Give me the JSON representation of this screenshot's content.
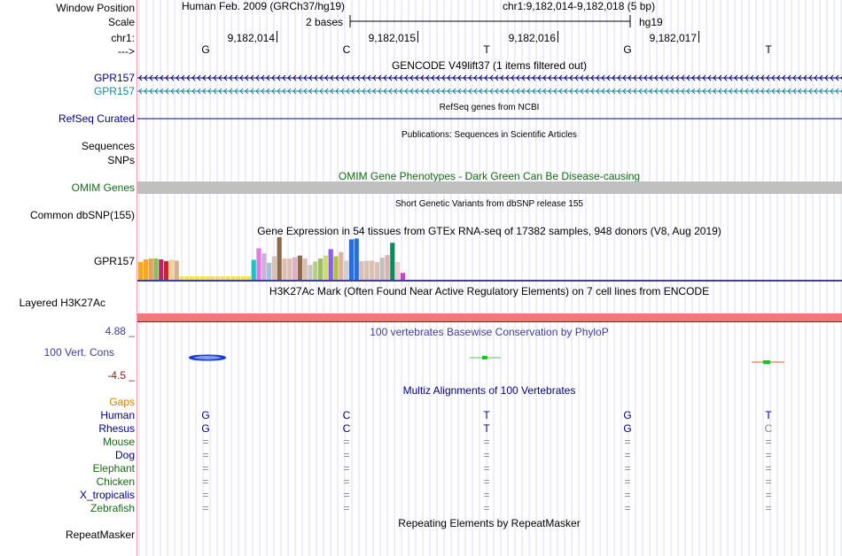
{
  "header": {
    "window_position_label": "Window Position",
    "scale_label": "Scale",
    "chr_label": "chr1:",
    "arrow_label": "--->",
    "assembly": "Human Feb. 2009 (GRCh37/hg19)",
    "position": "chr1:9,182,014-9,182,018 (5 bp)",
    "scale_text": "2 bases",
    "db": "hg19",
    "coords": [
      "9,182,014",
      "9,182,015",
      "9,182,016",
      "9,182,017"
    ],
    "bases": [
      "G",
      "C",
      "T",
      "G",
      "T"
    ]
  },
  "tracks": {
    "gencode": {
      "title": "GENCODE V49lift37 (1 items filtered out)",
      "items": [
        "GPR157",
        "GPR157"
      ]
    },
    "refseq": {
      "title": "RefSeq genes from NCBI",
      "label": "RefSeq Curated"
    },
    "publications": {
      "title": "Publications: Sequences in Scientific Articles",
      "label1": "Sequences",
      "label2": "SNPs"
    },
    "omim": {
      "title": "OMIM Gene Phenotypes - Dark Green Can Be Disease-causing",
      "label": "OMIM Genes"
    },
    "dbsnp": {
      "title": "Short Genetic Variants from dbSNP release 155",
      "label": "Common dbSNP(155)"
    },
    "gtex": {
      "title": "Gene Expression in 54 tissues from GTEx RNA-seq of 17382 samples, 948 donors (V8, Aug 2019)",
      "label": "GPR157"
    },
    "h3k27ac": {
      "title": "H3K27Ac Mark (Often Found Near Active Regulatory Elements) on 7 cell lines from ENCODE",
      "label": "Layered H3K27Ac"
    },
    "phylop": {
      "title": "100 vertebrates Basewise Conservation by PhyloP",
      "label": "100 Vert. Cons",
      "max": "4.88 _",
      "min": "-4.5 _"
    },
    "multiz": {
      "title": "Multiz Alignments of 100 Vertebrates",
      "gaps_label": "Gaps",
      "species": [
        {
          "name": "Human",
          "row": [
            "G",
            "C",
            "T",
            "G",
            "T"
          ]
        },
        {
          "name": "Rhesus",
          "row": [
            "G",
            "C",
            "T",
            "G",
            "C"
          ]
        },
        {
          "name": "Mouse",
          "row": [
            "=",
            "=",
            "=",
            "=",
            "="
          ]
        },
        {
          "name": "Dog",
          "row": [
            "=",
            "=",
            "=",
            "=",
            "="
          ]
        },
        {
          "name": "Elephant",
          "row": [
            "=",
            "=",
            "=",
            "=",
            "="
          ]
        },
        {
          "name": "Chicken",
          "row": [
            "=",
            "=",
            "=",
            "=",
            "="
          ]
        },
        {
          "name": "X_tropicalis",
          "row": [
            "=",
            "=",
            "=",
            "=",
            "="
          ]
        },
        {
          "name": "Zebrafish",
          "row": [
            "=",
            "=",
            "=",
            "=",
            "="
          ]
        }
      ]
    },
    "repeatmasker": {
      "title": "Repeating Elements by RepeatMasker",
      "label": "RepeatMasker"
    }
  },
  "gtex_bars": {
    "colors": [
      "#f5a623",
      "#f5a623",
      "#e6a15c",
      "#8fbc5a",
      "#c0226a",
      "#e31a1c",
      "#f5d48a",
      "#d2b48c",
      "#f0e442",
      "#f0e442",
      "#f0e442",
      "#f0e442",
      "#f0e442",
      "#f0e442",
      "#f0e442",
      "#f0e442",
      "#f0e442",
      "#f0e442",
      "#f0e442",
      "#f0e442",
      "#f0e442",
      "#f0e442",
      "#1bc5c5",
      "#e279e2",
      "#c9b3d6",
      "#a8c0d6",
      "#d9c0b3",
      "#8b6b4a",
      "#d9c0b3",
      "#d9c0b3",
      "#e0b0c8",
      "#8b6b4a",
      "#d9c0b3",
      "#c7c7c7",
      "#b8d070",
      "#a0c060",
      "#d0e060",
      "#8a5cf0",
      "#b0c040",
      "#e0b0a0",
      "#d0d0d0",
      "#2b6fd6",
      "#2b6fd6",
      "#d9c0b3",
      "#d9c0b3",
      "#d9c0b3",
      "#d9c0b3",
      "#c0c0c0",
      "#e0b0b0",
      "#0f8a5f",
      "#f0d0d0",
      "#d040d0"
    ],
    "values": [
      0.42,
      0.48,
      0.5,
      0.5,
      0.48,
      0.44,
      0.47,
      0.45,
      0.08,
      0.08,
      0.08,
      0.08,
      0.08,
      0.08,
      0.08,
      0.08,
      0.08,
      0.08,
      0.08,
      0.08,
      0.08,
      0.08,
      0.47,
      0.74,
      0.62,
      0.4,
      0.55,
      1.0,
      0.5,
      0.5,
      0.53,
      0.57,
      0.5,
      0.35,
      0.43,
      0.5,
      0.57,
      0.72,
      0.55,
      0.65,
      0.45,
      0.95,
      0.97,
      0.44,
      0.45,
      0.45,
      0.42,
      0.52,
      0.58,
      0.87,
      0.42,
      0.16
    ]
  },
  "colors": {
    "navy": "#000080",
    "teal": "#138a9c",
    "omim_green": "#146c14",
    "omim_bar": "#c0c0c0",
    "h3k27ac_bar": "#f07878",
    "phylop": "#3c3c9c",
    "phylop_min": "#8b1a1a",
    "gaps": "#d08000",
    "green_species": "#146c14",
    "grid": "#c8c8f0"
  }
}
